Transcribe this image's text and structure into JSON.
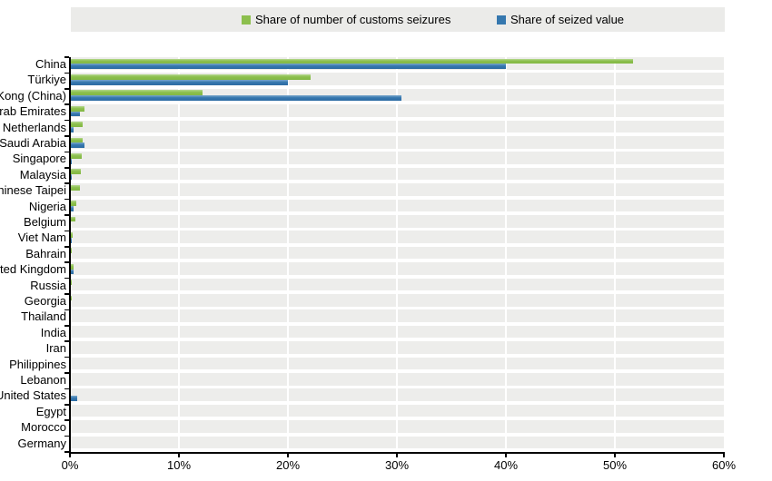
{
  "colors": {
    "series_seizures_green": "#8cbf4d",
    "series_value_blue": "#3577ae",
    "legend_band_bg": "#ebebe9",
    "row_stripe_bg": "#ededeb",
    "axis_black": "#000000",
    "gridline_white": "#ffffff"
  },
  "chart_data": {
    "type": "bar",
    "orientation": "horizontal",
    "title": "",
    "xlabel": "",
    "ylabel": "",
    "xlim": [
      0,
      60
    ],
    "x_ticks": [
      "0%",
      "10%",
      "20%",
      "30%",
      "40%",
      "50%",
      "60%"
    ],
    "grid": "vertical white gridlines on gray row stripes",
    "legend_position": "top",
    "categories": [
      "China",
      "Türkiye",
      "Hong Kong (China)",
      "United Arab Emirates",
      "Netherlands",
      "Saudi Arabia",
      "Singapore",
      "Malaysia",
      "Chinese Taipei",
      "Nigeria",
      "Belgium",
      "Viet Nam",
      "Bahrain",
      "United Kingdom",
      "Russia",
      "Georgia",
      "Thailand",
      "India",
      "Iran",
      "Philippines",
      "Lebanon",
      "United States",
      "Egypt",
      "Morocco",
      "Germany"
    ],
    "series": [
      {
        "name": "Share of number of customs seizures",
        "color": "#8cbf4d",
        "values": [
          51.7,
          22.1,
          12.2,
          1.3,
          1.2,
          1.2,
          1.1,
          1.0,
          0.9,
          0.55,
          0.5,
          0.25,
          0.2,
          0.3,
          0.2,
          0.15,
          0.12,
          0.12,
          0.1,
          0.1,
          0.1,
          0.1,
          0.08,
          0.06,
          0.05
        ]
      },
      {
        "name": "Share of seized value",
        "color": "#3577ae",
        "values": [
          40.0,
          20.0,
          30.4,
          0.9,
          0.3,
          1.3,
          0.2,
          0.15,
          0.12,
          0.35,
          0.1,
          0.15,
          0.12,
          0.3,
          0.06,
          0.04,
          0.08,
          0.04,
          0.03,
          0.03,
          0.05,
          0.65,
          0.03,
          0.02,
          0.02
        ]
      }
    ]
  }
}
